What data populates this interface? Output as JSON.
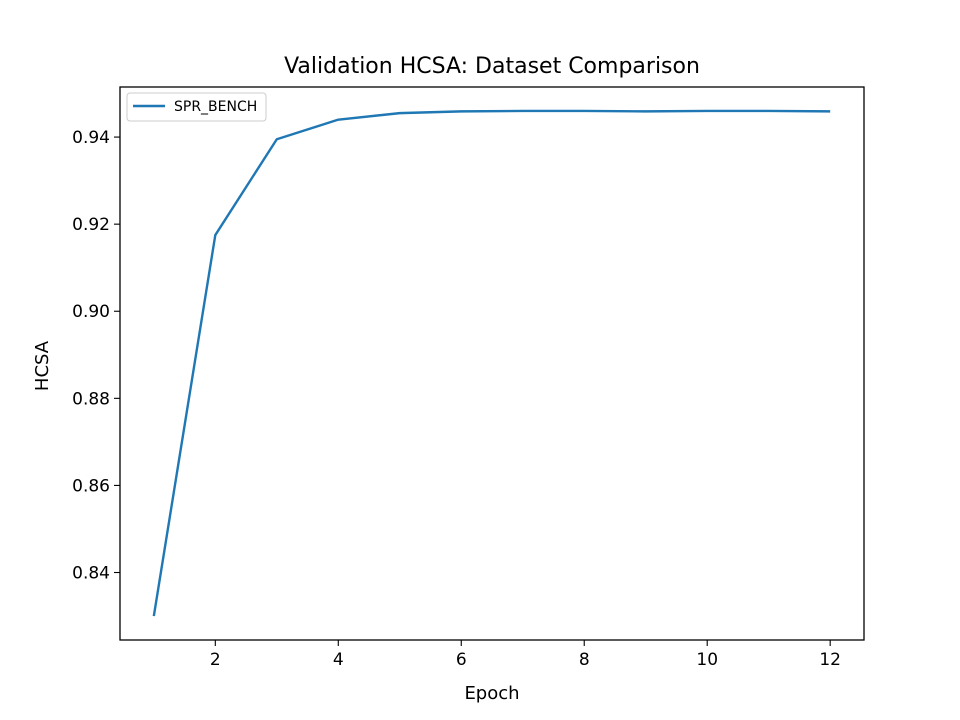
{
  "chart_data": {
    "type": "line",
    "title": "Validation HCSA: Dataset Comparison",
    "xlabel": "Epoch",
    "ylabel": "HCSA",
    "x": [
      1,
      2,
      3,
      4,
      5,
      6,
      7,
      8,
      9,
      10,
      11,
      12
    ],
    "series": [
      {
        "name": "SPR_BENCH",
        "color": "#1f77b4",
        "values": [
          0.83,
          0.9175,
          0.9395,
          0.944,
          0.9455,
          0.9459,
          0.946,
          0.946,
          0.9459,
          0.946,
          0.946,
          0.9459
        ]
      }
    ],
    "xlim": [
      0.45,
      12.55
    ],
    "ylim": [
      0.8245,
      0.9515
    ],
    "xticks": [
      2,
      4,
      6,
      8,
      10,
      12
    ],
    "yticks": [
      0.84,
      0.86,
      0.88,
      0.9,
      0.92,
      0.94
    ],
    "ytick_labels": [
      "0.84",
      "0.86",
      "0.88",
      "0.90",
      "0.92",
      "0.94"
    ],
    "grid": false,
    "legend_position": "upper-left"
  }
}
